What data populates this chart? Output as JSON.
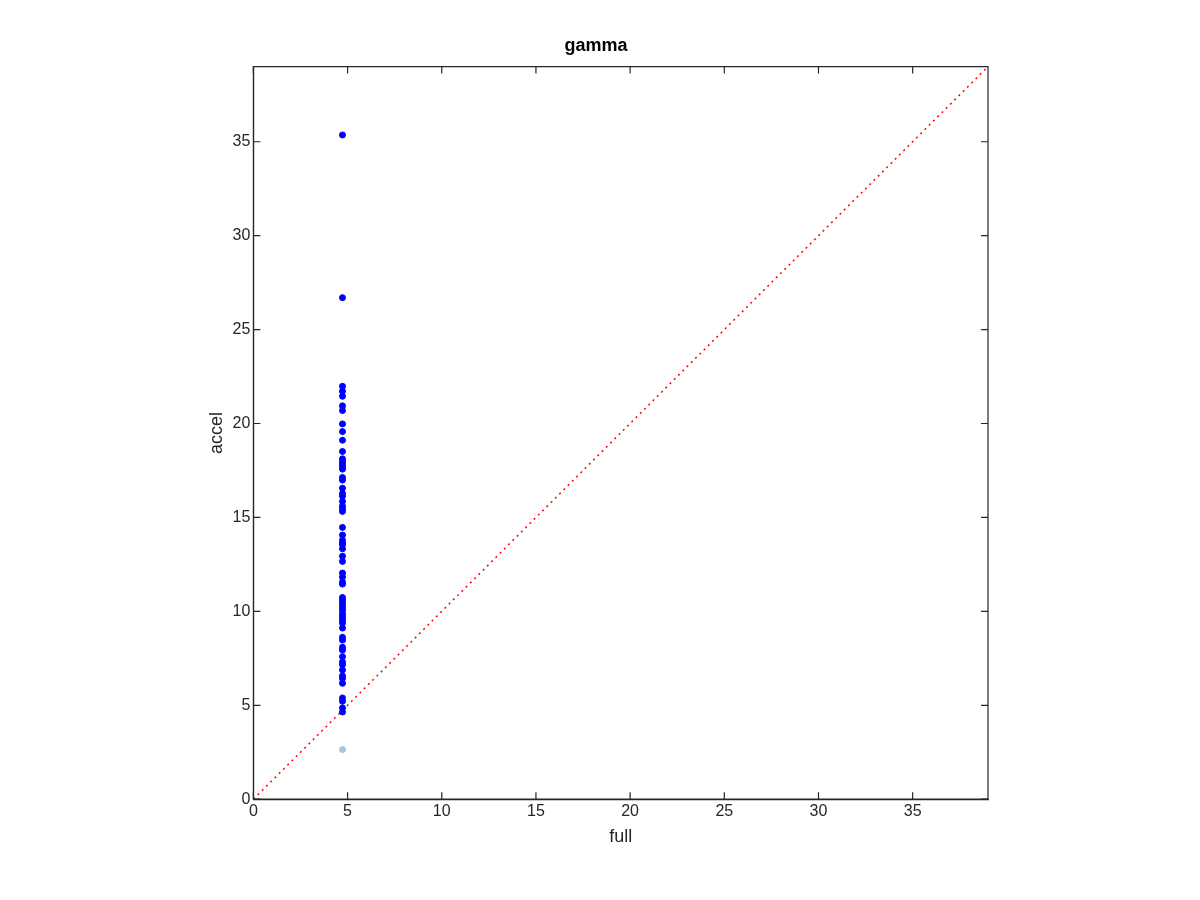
{
  "chart_data": {
    "type": "scatter",
    "title": "gamma",
    "xlabel": "full",
    "ylabel": "accel",
    "xlim": [
      0,
      39
    ],
    "ylim": [
      0,
      39
    ],
    "xticks": [
      0,
      5,
      10,
      15,
      20,
      25,
      30,
      35
    ],
    "yticks": [
      0,
      5,
      10,
      15,
      20,
      25,
      30,
      35
    ],
    "grid": false,
    "legend": false,
    "marker": "circle",
    "series": [
      {
        "color": "#0000ff",
        "x": [
          4.73,
          4.73,
          4.73,
          4.73,
          4.73,
          4.73,
          4.73,
          4.73,
          4.73,
          4.73,
          4.73,
          4.73,
          4.73,
          4.73,
          4.73,
          4.73,
          4.73,
          4.73,
          4.73,
          4.73,
          4.73,
          4.73,
          4.73,
          4.73,
          4.73,
          4.73,
          4.73,
          4.73,
          4.73,
          4.73,
          4.73,
          4.73,
          4.73,
          4.73,
          4.73,
          4.73,
          4.73,
          4.73,
          4.73,
          4.73,
          4.73,
          4.73,
          4.73,
          4.73,
          4.73,
          4.73,
          4.73,
          4.73,
          4.73,
          4.73,
          4.73,
          4.73,
          4.73,
          4.73,
          4.73,
          4.73,
          4.73,
          4.73,
          4.73,
          4.73,
          4.73,
          4.73,
          4.73
        ],
        "values": [
          35.36,
          26.7,
          21.98,
          21.72,
          21.45,
          20.94,
          20.69,
          19.98,
          19.57,
          19.11,
          18.51,
          18.12,
          17.98,
          17.84,
          17.7,
          17.57,
          17.13,
          16.99,
          16.56,
          16.28,
          16.13,
          15.85,
          15.6,
          15.46,
          15.32,
          14.47,
          14.06,
          13.78,
          13.65,
          13.55,
          13.33,
          12.94,
          12.66,
          12.04,
          11.83,
          11.56,
          11.45,
          10.74,
          10.6,
          10.46,
          10.32,
          10.18,
          10.04,
          9.86,
          9.7,
          9.54,
          9.38,
          9.11,
          8.62,
          8.47,
          8.09,
          7.94,
          7.59,
          7.3,
          7.16,
          6.88,
          6.56,
          6.42,
          6.17,
          5.39,
          5.21,
          4.86,
          4.64
        ]
      },
      {
        "color": "#a8c4d8",
        "x": [
          4.73
        ],
        "values": [
          2.64
        ]
      },
      {
        "type": "line",
        "color": "#ff0000",
        "line_style": "dotted",
        "marker": "none",
        "x": [
          0,
          39
        ],
        "values": [
          0,
          39
        ]
      }
    ]
  }
}
